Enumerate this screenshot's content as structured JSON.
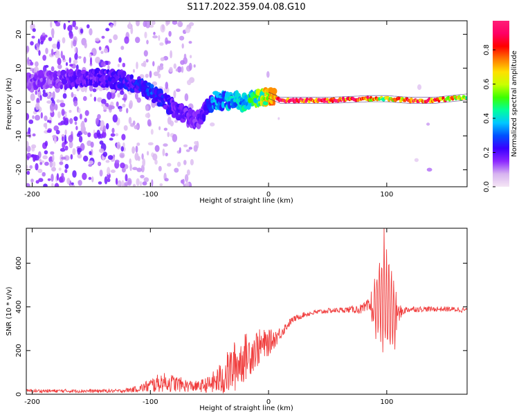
{
  "title": "S117.2022.359.04.08.G10",
  "chart_data": [
    {
      "type": "heatmap",
      "xlabel": "Height of straight line (km)",
      "ylabel": "Frequency (Hz)",
      "xlim": [
        -205,
        168
      ],
      "ylim": [
        -25,
        24
      ],
      "x_ticks": [
        -200,
        -100,
        0,
        100
      ],
      "y_ticks": [
        -20,
        -10,
        0,
        10,
        20
      ],
      "colorbar": {
        "label": "Normalized spectral amplitude",
        "range": [
          0,
          0.97
        ],
        "ticks": [
          0.0,
          0.2,
          0.4,
          0.6,
          0.8
        ],
        "colormap": [
          "#f5e6f5",
          "#d7b4f0",
          "#8c28ff",
          "#3a00ff",
          "#0050ff",
          "#00c8ff",
          "#00ff9c",
          "#3cff00",
          "#c8ff00",
          "#ffe000",
          "#ff7800",
          "#ff0000",
          "#ff0064",
          "#ff1e78"
        ]
      },
      "ridge": {
        "x": [
          -200,
          -180,
          -160,
          -140,
          -125,
          -110,
          -100,
          -90,
          -80,
          -70,
          -65,
          -60,
          -55,
          -45,
          -35,
          -20,
          -10,
          0,
          10,
          50,
          85,
          100,
          120,
          140,
          168
        ],
        "y": [
          6.5,
          6.5,
          7.0,
          7.0,
          6.5,
          5.0,
          3.0,
          1.0,
          -2.0,
          -4.0,
          -5.0,
          -5.5,
          -3.0,
          0.5,
          0.5,
          0.0,
          1.0,
          2.0,
          0.5,
          0.5,
          1.0,
          1.0,
          0.5,
          0.5,
          1.5
        ],
        "amplitude": [
          0.15,
          0.15,
          0.2,
          0.2,
          0.22,
          0.25,
          0.3,
          0.25,
          0.2,
          0.18,
          0.18,
          0.18,
          0.2,
          0.35,
          0.35,
          0.4,
          0.5,
          0.7,
          0.95,
          0.95,
          0.8,
          0.6,
          0.85,
          0.85,
          0.6
        ]
      }
    },
    {
      "type": "line",
      "xlabel": "Height of straight line (km)",
      "ylabel": "SNR (10 * v/v)",
      "xlim": [
        -205,
        168
      ],
      "ylim": [
        0,
        760
      ],
      "x_ticks": [
        -200,
        -100,
        0,
        100
      ],
      "y_ticks": [
        0,
        200,
        400,
        600
      ],
      "color": "#f03c3c",
      "series": [
        {
          "x": [
            -205,
            -180,
            -150,
            -125,
            -110,
            -100,
            -90,
            -80,
            -70,
            -60,
            -50,
            -40,
            -30,
            -20,
            -10,
            0,
            5,
            10,
            15,
            20,
            30,
            40,
            50,
            60,
            70,
            80,
            85,
            90,
            95,
            98,
            100,
            103,
            107,
            110,
            115,
            120,
            130,
            140,
            150,
            160,
            168
          ],
          "y": [
            15,
            15,
            15,
            15,
            25,
            40,
            55,
            50,
            40,
            35,
            45,
            70,
            120,
            170,
            210,
            235,
            255,
            280,
            310,
            340,
            365,
            375,
            382,
            385,
            388,
            390,
            400,
            420,
            440,
            450,
            420,
            400,
            360,
            370,
            385,
            390,
            390,
            390,
            390,
            388,
            385
          ],
          "noise": [
            8,
            8,
            8,
            8,
            15,
            35,
            45,
            40,
            30,
            25,
            40,
            80,
            120,
            110,
            90,
            60,
            45,
            30,
            22,
            15,
            12,
            12,
            12,
            12,
            15,
            25,
            40,
            130,
            230,
            280,
            260,
            210,
            130,
            40,
            18,
            15,
            12,
            12,
            12,
            12,
            12
          ]
        }
      ]
    }
  ]
}
